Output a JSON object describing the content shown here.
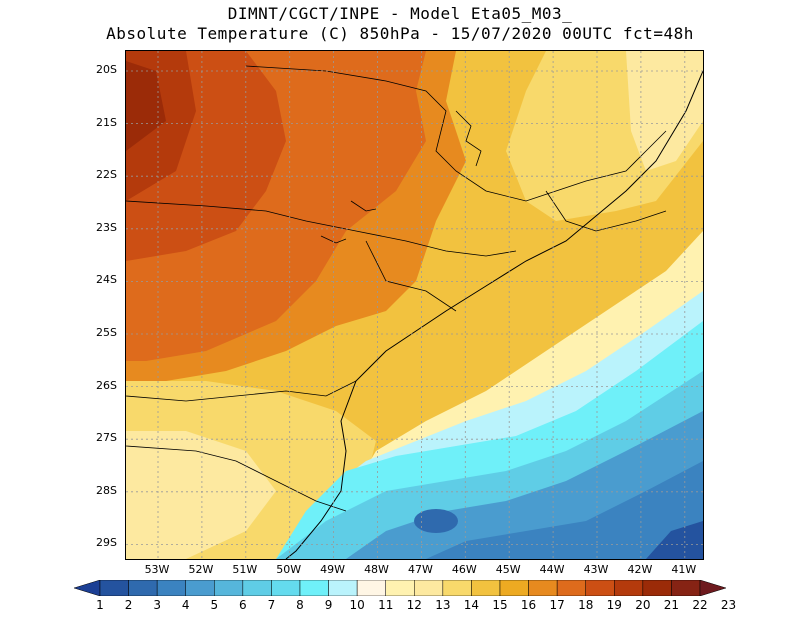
{
  "title": {
    "line1": "DIMNT/CGCT/INPE -  Model Eta05_M03_",
    "line2": "Absolute Temperature (C) 850hPa -  15/07/2020 00UTC fct=48h"
  },
  "lat_labels": [
    "20S",
    "21S",
    "22S",
    "23S",
    "24S",
    "25S",
    "26S",
    "27S",
    "28S",
    "29S"
  ],
  "lon_labels": [
    "53W",
    "52W",
    "51W",
    "50W",
    "49W",
    "48W",
    "47W",
    "46W",
    "45W",
    "44W",
    "43W",
    "42W",
    "41W"
  ],
  "colorbar": {
    "labels": [
      "1",
      "2",
      "3",
      "4",
      "5",
      "6",
      "7",
      "8",
      "9",
      "10",
      "11",
      "12",
      "13",
      "14",
      "15",
      "16",
      "17",
      "18",
      "19",
      "20",
      "21",
      "22",
      "23"
    ],
    "colors": [
      "#1c3f94",
      "#24539f",
      "#2f6aae",
      "#3b83c0",
      "#4a9ccf",
      "#56b6db",
      "#5fcde6",
      "#64dbee",
      "#6ff0f9",
      "#baf3fc",
      "#fff6e5",
      "#fff2b0",
      "#fde9a0",
      "#f8d96b",
      "#f2c23f",
      "#edaa22",
      "#e78a1f",
      "#de6b1c",
      "#cc4f14",
      "#b43a0c",
      "#9b2b08",
      "#862314",
      "#6e1a1e"
    ]
  }
}
